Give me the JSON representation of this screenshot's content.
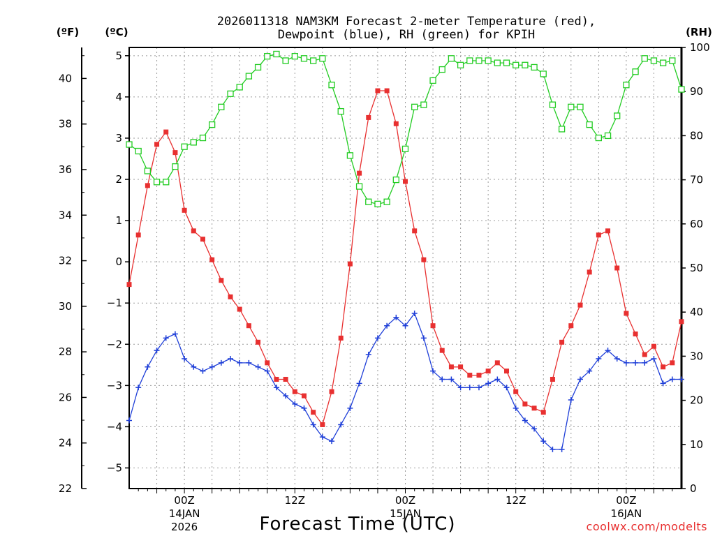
{
  "chart_data": {
    "type": "line",
    "title_lines": [
      "2026011318 NAM3KM Forecast 2-meter Temperature (red),",
      "Dewpoint (blue), RH (green) for KPIH"
    ],
    "unit_f": "(ºF)",
    "unit_c": "(ºC)",
    "unit_rh": "(RH)",
    "xlabel": "Forecast Time (UTC)",
    "credit": "coolwx.com/modelts",
    "x_hours_range": [
      -6,
      54
    ],
    "ylim_c": [
      -5.5,
      5.2
    ],
    "ylim_rh": [
      0,
      100
    ],
    "ylim_f": [
      22,
      41.36
    ],
    "left_f_ticks": [
      22,
      24,
      26,
      28,
      30,
      32,
      34,
      36,
      38,
      40
    ],
    "left_c_ticks": [
      -5,
      -4,
      -3,
      -2,
      -1,
      0,
      1,
      2,
      3,
      4,
      5
    ],
    "right_rh_ticks": [
      0,
      10,
      20,
      30,
      40,
      50,
      60,
      70,
      80,
      90,
      100
    ],
    "x_ticks": [
      {
        "hour": 0,
        "label": "00Z",
        "sub1": "14JAN",
        "sub2": "2026"
      },
      {
        "hour": 12,
        "label": "12Z",
        "sub1": "",
        "sub2": ""
      },
      {
        "hour": 24,
        "label": "00Z",
        "sub1": "15JAN",
        "sub2": ""
      },
      {
        "hour": 36,
        "label": "12Z",
        "sub1": "",
        "sub2": ""
      },
      {
        "hour": 48,
        "label": "00Z",
        "sub1": "16JAN",
        "sub2": ""
      }
    ],
    "x_grid_hours": [
      -3,
      0,
      3,
      6,
      9,
      12,
      15,
      18,
      21,
      24,
      27,
      30,
      33,
      36,
      39,
      42,
      45,
      48,
      51
    ],
    "series": [
      {
        "name": "Temperature (°C)",
        "color": "#e83030",
        "marker": "filled-square",
        "axis": "c",
        "start_hour": -6,
        "step_hours": 1,
        "values": [
          -0.55,
          0.65,
          1.85,
          2.85,
          3.15,
          2.65,
          1.25,
          0.75,
          0.55,
          0.05,
          -0.45,
          -0.85,
          -1.15,
          -1.55,
          -1.95,
          -2.45,
          -2.85,
          -2.85,
          -3.15,
          -3.25,
          -3.65,
          -3.95,
          -3.15,
          -1.85,
          -0.05,
          2.15,
          3.5,
          4.15,
          4.15,
          3.35,
          1.95,
          0.75,
          0.05,
          -1.55,
          -2.15,
          -2.55,
          -2.55,
          -2.75,
          -2.75,
          -2.65,
          -2.45,
          -2.65,
          -3.15,
          -3.45,
          -3.55,
          -3.65,
          -2.85,
          -1.95,
          -1.55,
          -1.05,
          -0.25,
          0.65,
          0.75,
          -0.15,
          -1.25,
          -1.75,
          -2.25,
          -2.05,
          -2.55,
          -2.45,
          -1.45
        ]
      },
      {
        "name": "Dewpoint (°C)",
        "color": "#1f3fd8",
        "marker": "plus",
        "axis": "c",
        "start_hour": -6,
        "step_hours": 1,
        "values": [
          -3.85,
          -3.05,
          -2.55,
          -2.15,
          -1.85,
          -1.75,
          -2.35,
          -2.55,
          -2.65,
          -2.55,
          -2.45,
          -2.35,
          -2.45,
          -2.45,
          -2.55,
          -2.65,
          -3.05,
          -3.25,
          -3.45,
          -3.55,
          -3.95,
          -4.25,
          -4.35,
          -3.95,
          -3.55,
          -2.95,
          -2.25,
          -1.85,
          -1.55,
          -1.35,
          -1.55,
          -1.25,
          -1.85,
          -2.65,
          -2.85,
          -2.85,
          -3.05,
          -3.05,
          -3.05,
          -2.95,
          -2.85,
          -3.05,
          -3.55,
          -3.85,
          -4.05,
          -4.35,
          -4.55,
          -4.55,
          -3.35,
          -2.85,
          -2.65,
          -2.35,
          -2.15,
          -2.35,
          -2.45,
          -2.45,
          -2.45,
          -2.35,
          -2.95,
          -2.85,
          -2.85
        ]
      },
      {
        "name": "Relative Humidity (%)",
        "color": "#22cc22",
        "marker": "open-square",
        "axis": "rh",
        "start_hour": -6,
        "step_hours": 1,
        "values": [
          78.0,
          76.5,
          72.0,
          69.5,
          69.5,
          73.0,
          77.5,
          78.5,
          79.5,
          82.5,
          86.5,
          89.5,
          91.0,
          93.5,
          95.5,
          98.0,
          98.5,
          97.0,
          98.0,
          97.5,
          97.0,
          97.5,
          91.5,
          85.5,
          75.5,
          68.5,
          65.0,
          64.5,
          65.0,
          70.0,
          77.0,
          86.5,
          87.0,
          92.5,
          95.0,
          97.5,
          96.0,
          97.0,
          97.0,
          97.0,
          96.5,
          96.5,
          96.0,
          96.0,
          95.5,
          94.0,
          87.0,
          81.5,
          86.5,
          86.5,
          82.5,
          79.5,
          80.0,
          84.5,
          91.5,
          94.5,
          97.5,
          97.0,
          96.5,
          97.0,
          90.5
        ]
      }
    ]
  }
}
